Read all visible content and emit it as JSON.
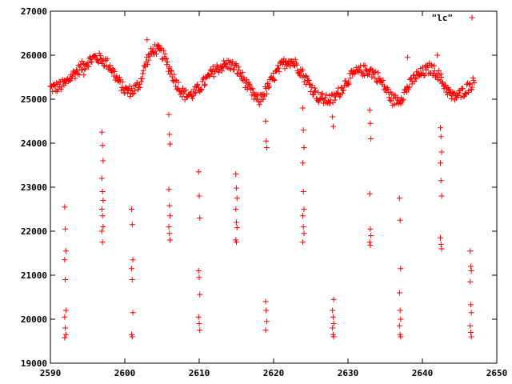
{
  "chart_data": {
    "type": "scatter",
    "title": "",
    "xlabel": "",
    "ylabel": "",
    "xlim": [
      2590,
      2650
    ],
    "ylim": [
      19000,
      27000
    ],
    "x_ticks": [
      2590,
      2600,
      2610,
      2620,
      2630,
      2640,
      2650
    ],
    "y_ticks": [
      19000,
      20000,
      21000,
      22000,
      23000,
      24000,
      25000,
      26000,
      27000
    ],
    "grid": false,
    "legend_position": "top-right",
    "marker": "plus",
    "color": "#ff0000",
    "series": [
      {
        "name": "\"lc\"",
        "baseline": {
          "x": [
            2590,
            2591,
            2592,
            2593,
            2594,
            2595,
            2596,
            2597,
            2598,
            2599,
            2600,
            2601,
            2602,
            2603,
            2604,
            2605,
            2606,
            2607,
            2608,
            2609,
            2610,
            2611,
            2612,
            2613,
            2614,
            2615,
            2616,
            2617,
            2618,
            2619,
            2620,
            2621,
            2622,
            2623,
            2624,
            2625,
            2626,
            2627,
            2628,
            2629,
            2630,
            2631,
            2632,
            2633,
            2634,
            2635,
            2636,
            2637,
            2638,
            2639,
            2640,
            2641,
            2642,
            2643,
            2644,
            2645,
            2646,
            2647
          ],
          "y": [
            25250,
            25280,
            25350,
            25550,
            25700,
            25850,
            25950,
            25900,
            25750,
            25450,
            25200,
            25180,
            25350,
            25900,
            26150,
            26050,
            25700,
            25350,
            25100,
            25100,
            25250,
            25450,
            25650,
            25750,
            25800,
            25700,
            25450,
            25150,
            24950,
            25200,
            25500,
            25750,
            25900,
            25800,
            25550,
            25300,
            25050,
            24980,
            25000,
            25200,
            25450,
            25600,
            25650,
            25650,
            25500,
            25250,
            24980,
            25000,
            25250,
            25500,
            25600,
            25700,
            25600,
            25300,
            25050,
            25100,
            25250,
            25400
          ]
        },
        "dips": [
          {
            "x": 2592,
            "y": [
              22550,
              22050,
              21550,
              21350,
              20900,
              20200,
              20050,
              19800,
              19650,
              19580
            ]
          },
          {
            "x": 2597,
            "y": [
              24250,
              23950,
              23600,
              23200,
              22900,
              22700,
              22500,
              22350,
              22100,
              22000,
              21750
            ]
          },
          {
            "x": 2601,
            "y": [
              22500,
              22150,
              21350,
              21150,
              20900,
              20150,
              19650,
              19600
            ]
          },
          {
            "x": 2606,
            "y": [
              24650,
              24200,
              23980,
              22950,
              22580,
              22350,
              22100,
              21950,
              21800
            ]
          },
          {
            "x": 2610,
            "y": [
              23350,
              22800,
              22300,
              21100,
              20950,
              20560,
              20050,
              19900,
              19750
            ]
          },
          {
            "x": 2615,
            "y": [
              23300,
              22980,
              22750,
              22500,
              22200,
              22080,
              21800,
              21750
            ]
          },
          {
            "x": 2619,
            "y": [
              24500,
              24050,
              23900,
              20400,
              20200,
              19950,
              19750
            ]
          },
          {
            "x": 2624,
            "y": [
              24800,
              24300,
              23900,
              23550,
              22900,
              22500,
              22350,
              22100,
              21950,
              21750
            ]
          },
          {
            "x": 2628,
            "y": [
              24600,
              24380,
              20450,
              20200,
              20050,
              19900,
              19800,
              19650,
              19600
            ]
          },
          {
            "x": 2633,
            "y": [
              24750,
              24450,
              24100,
              22850,
              22050,
              21900,
              21750,
              21680
            ]
          },
          {
            "x": 2637,
            "y": [
              22750,
              22250,
              21150,
              20600,
              20200,
              20000,
              19850,
              19650,
              19600
            ]
          },
          {
            "x": 2642.5,
            "y": [
              24350,
              24150,
              23800,
              23550,
              23150,
              22800,
              21850,
              21700,
              21600
            ]
          },
          {
            "x": 2646.5,
            "y": [
              21550,
              21200,
              21100,
              20850,
              20330,
              20150,
              19850,
              19700,
              19600
            ]
          }
        ],
        "outliers": [
          {
            "x": 2638,
            "y": 25950
          },
          {
            "x": 2642,
            "y": 26000
          },
          {
            "x": 2603,
            "y": 26350
          },
          {
            "x": 2594.5,
            "y": 25550
          }
        ]
      }
    ]
  }
}
